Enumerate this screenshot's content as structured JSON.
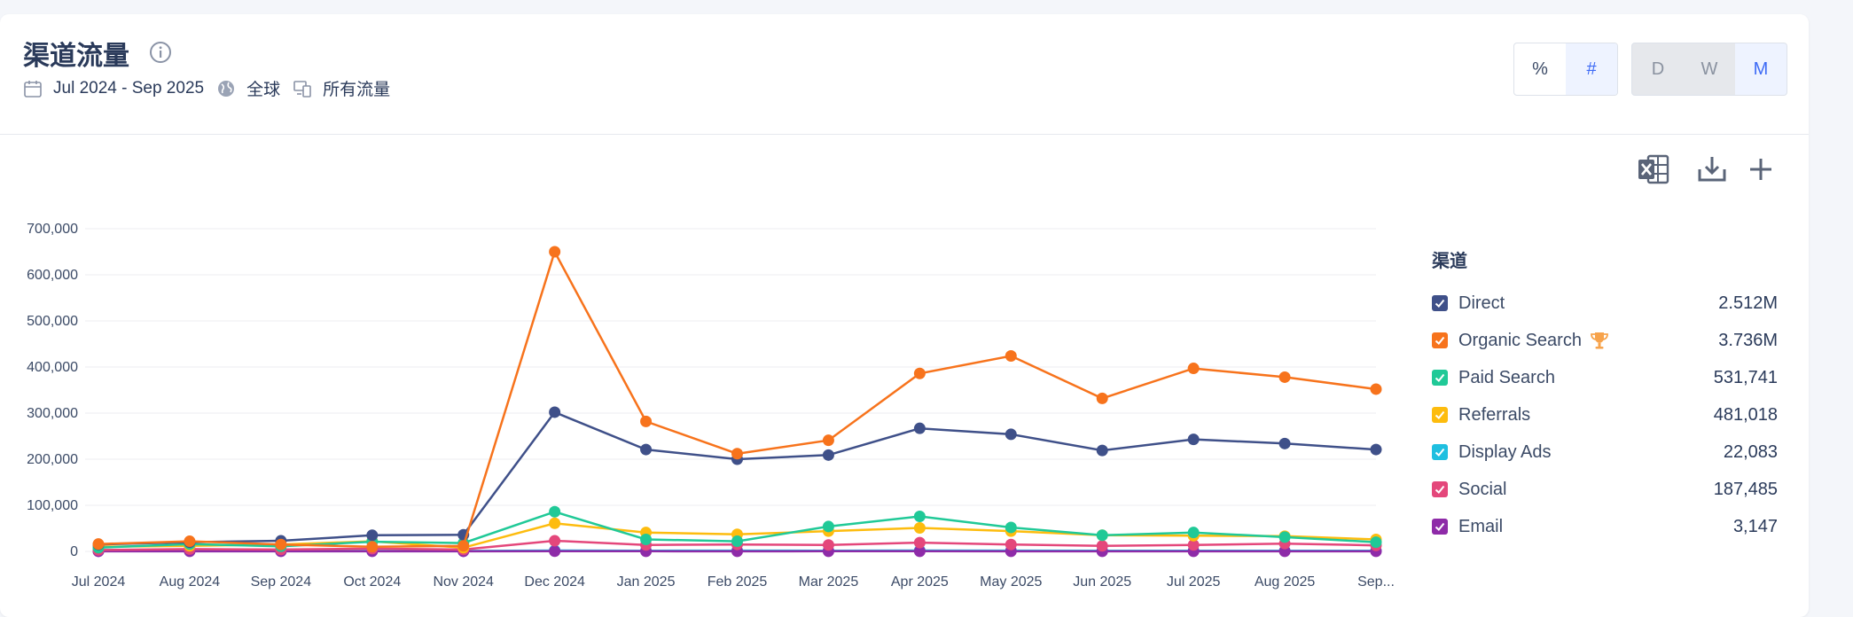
{
  "header": {
    "title": "渠道流量",
    "date_range": "Jul 2024 - Sep 2025",
    "region": "全球",
    "traffic_type": "所有流量"
  },
  "toggles": {
    "percent": "%",
    "number": "#",
    "day": "D",
    "week": "W",
    "month": "M"
  },
  "icons": {
    "excel": "excel-icon",
    "download": "download-icon",
    "add": "plus-icon"
  },
  "legend": {
    "title": "渠道",
    "items": [
      {
        "name": "Direct",
        "value": "2.512M",
        "color": "#3f5089"
      },
      {
        "name": "Organic Search",
        "value": "3.736M",
        "color": "#f7731c"
      },
      {
        "name": "Paid Search",
        "value": "531,741",
        "color": "#20c997"
      },
      {
        "name": "Referrals",
        "value": "481,018",
        "color": "#fdbc0e"
      },
      {
        "name": "Display Ads",
        "value": "22,083",
        "color": "#1fbfe0"
      },
      {
        "name": "Social",
        "value": "187,485",
        "color": "#e4477b"
      },
      {
        "name": "Email",
        "value": "3,147",
        "color": "#8e2ba8"
      }
    ]
  },
  "chart_data": {
    "type": "line",
    "title": "",
    "xlabel": "",
    "ylabel": "",
    "ylim": [
      0,
      700000
    ],
    "yticks": [
      "0",
      "100,000",
      "200,000",
      "300,000",
      "400,000",
      "500,000",
      "600,000",
      "700,000"
    ],
    "categories": [
      "Jul 2024",
      "Aug 2024",
      "Sep 2024",
      "Oct 2024",
      "Nov 2024",
      "Dec 2024",
      "Jan 2025",
      "Feb 2025",
      "Mar 2025",
      "Apr 2025",
      "May 2025",
      "Jun 2025",
      "Jul 2025",
      "Aug 2025",
      "Sep..."
    ],
    "series": [
      {
        "name": "Direct",
        "color": "#3f5089",
        "values": [
          15000,
          20000,
          23000,
          35000,
          36000,
          302000,
          221000,
          200000,
          209000,
          267000,
          254000,
          219000,
          243000,
          234000,
          221000
        ]
      },
      {
        "name": "Organic Search",
        "color": "#f7731c",
        "values": [
          16000,
          22000,
          15000,
          10000,
          12000,
          650000,
          282000,
          212000,
          241000,
          386000,
          424000,
          332000,
          397000,
          378000,
          352000
        ]
      },
      {
        "name": "Paid Search",
        "color": "#20c997",
        "values": [
          8000,
          16000,
          11000,
          21000,
          18000,
          86000,
          26000,
          22000,
          54000,
          76000,
          52000,
          35000,
          41000,
          31000,
          20000
        ]
      },
      {
        "name": "Referrals",
        "color": "#fdbc0e",
        "values": [
          10000,
          12000,
          15000,
          22000,
          8000,
          61000,
          41000,
          37000,
          44000,
          51000,
          44000,
          35000,
          34000,
          33000,
          26000
        ]
      },
      {
        "name": "Display Ads",
        "color": "#1fbfe0",
        "values": [
          1000,
          1200,
          900,
          1100,
          1000,
          2000,
          1500,
          1800,
          1500,
          2000,
          1700,
          1500,
          1600,
          1500,
          1400
        ]
      },
      {
        "name": "Social",
        "color": "#e4477b",
        "values": [
          3000,
          5000,
          4000,
          6000,
          4000,
          23000,
          14000,
          15000,
          14000,
          19000,
          15000,
          12000,
          14000,
          17000,
          13000
        ]
      },
      {
        "name": "Email",
        "color": "#8e2ba8",
        "values": [
          100,
          150,
          200,
          150,
          100,
          400,
          300,
          250,
          300,
          300,
          250,
          200,
          250,
          200,
          200
        ]
      }
    ]
  }
}
